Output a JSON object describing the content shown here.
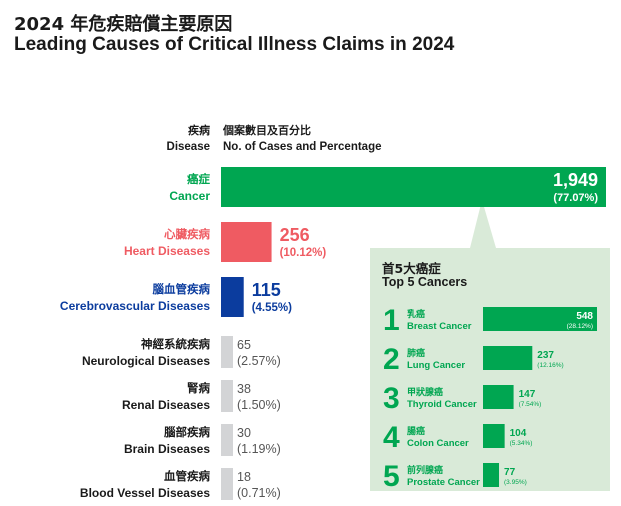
{
  "title": {
    "zh": "2024 年危疾賠償主要原因",
    "en": "Leading Causes of Critical Illness Claims in 2024"
  },
  "header": {
    "disease_zh": "疾病",
    "disease_en": "Disease",
    "cases_zh": "個案數目及百分比",
    "cases_en": "No. of Cases and Percentage"
  },
  "colors": {
    "green": "#00a651",
    "red": "#ef5b62",
    "blue": "#0b3c9e",
    "gray": "#d3d4d6",
    "panel": "#d9ead8"
  },
  "chart_data": [
    {
      "type": "bar",
      "orientation": "horizontal",
      "categories_zh": [
        "癌症",
        "心臟疾病",
        "腦血管疾病",
        "神經系統疾病",
        "腎病",
        "腦部疾病",
        "血管疾病"
      ],
      "categories": [
        "Cancer",
        "Heart Diseases",
        "Cerebrovascular Diseases",
        "Neurological Diseases",
        "Renal Diseases",
        "Brain Diseases",
        "Blood Vessel Diseases"
      ],
      "values": [
        1949,
        256,
        115,
        65,
        38,
        30,
        18
      ],
      "value_labels": [
        "1,949",
        "256",
        "115",
        "65",
        "38",
        "30",
        "18"
      ],
      "percent_labels": [
        "(77.07%)",
        "(10.12%)",
        "(4.55%)",
        "(2.57%)",
        "(1.50%)",
        "(1.19%)",
        "(0.71%)"
      ],
      "bar_colors": [
        "#00a651",
        "#ef5b62",
        "#0b3c9e",
        "#d3d4d6",
        "#d3d4d6",
        "#d3d4d6",
        "#d3d4d6"
      ],
      "label_colors": [
        "#00a651",
        "#ef5b62",
        "#0b3c9e",
        "#1a1a1a",
        "#1a1a1a",
        "#1a1a1a",
        "#1a1a1a"
      ]
    },
    {
      "type": "bar",
      "orientation": "horizontal",
      "title_zh": "首5大癌症",
      "title": "Top 5 Cancers",
      "ranks": [
        "1",
        "2",
        "3",
        "4",
        "5"
      ],
      "categories_zh": [
        "乳癌",
        "肺癌",
        "甲狀腺癌",
        "腸癌",
        "前列腺癌"
      ],
      "categories": [
        "Breast Cancer",
        "Lung Cancer",
        "Thyroid Cancer",
        "Colon Cancer",
        "Prostate Cancer"
      ],
      "values": [
        548,
        237,
        147,
        104,
        77
      ],
      "value_labels": [
        "548",
        "237",
        "147",
        "104",
        "77"
      ],
      "percent_labels": [
        "(28.12%)",
        "(12.16%)",
        "(7.54%)",
        "(5.34%)",
        "(3.95%)"
      ],
      "bar_color": "#00a651"
    }
  ]
}
